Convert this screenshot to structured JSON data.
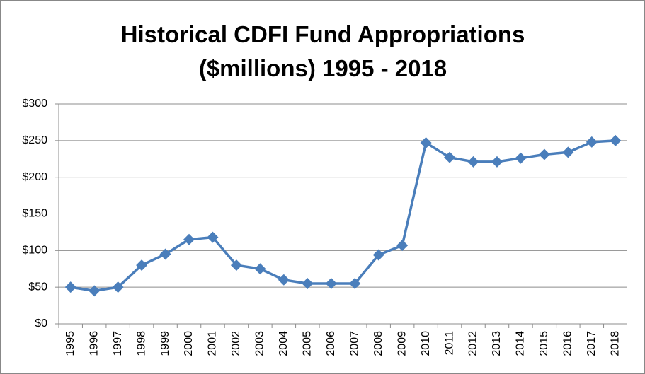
{
  "chart_data": {
    "type": "line",
    "title": "Historical CDFI Fund Appropriations ($millions) 1995 - 2018",
    "categories": [
      "1995",
      "1996",
      "1997",
      "1998",
      "1999",
      "2000",
      "2001",
      "2002",
      "2003",
      "2004",
      "2005",
      "2006",
      "2007",
      "2008",
      "2009",
      "2010",
      "2011",
      "2012",
      "2013",
      "2014",
      "2015",
      "2016",
      "2017",
      "2018"
    ],
    "series": [
      {
        "name": "CDFI Fund Appropriations",
        "color": "#4a7ebb",
        "values": [
          50,
          45,
          50,
          80,
          95,
          115,
          118,
          80,
          75,
          60,
          55,
          55,
          55,
          94,
          107,
          247,
          227,
          221,
          221,
          226,
          231,
          234,
          248,
          250
        ]
      }
    ],
    "ylim": [
      0,
      300
    ],
    "yticks": [
      {
        "value": 0,
        "label": "$0"
      },
      {
        "value": 50,
        "label": "$50"
      },
      {
        "value": 100,
        "label": "$100"
      },
      {
        "value": 150,
        "label": "$150"
      },
      {
        "value": 200,
        "label": "$200"
      },
      {
        "value": 250,
        "label": "$250"
      },
      {
        "value": 300,
        "label": "$300"
      }
    ],
    "grid": true,
    "legend": false
  }
}
